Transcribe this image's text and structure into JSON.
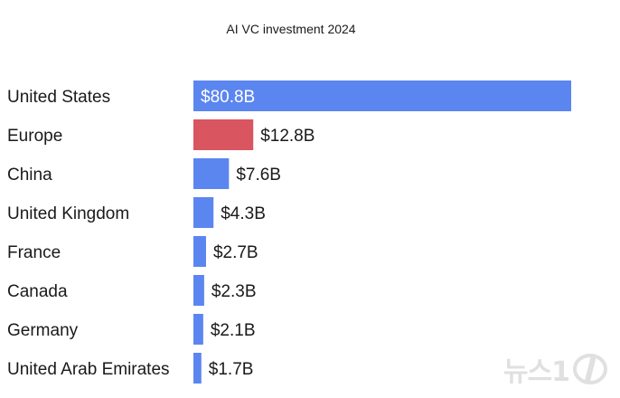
{
  "chart_data": {
    "type": "bar",
    "orientation": "horizontal",
    "title": "AI VC investment 2024",
    "categories": [
      "United States",
      "Europe",
      "China",
      "United Kingdom",
      "France",
      "Canada",
      "Germany",
      "United Arab Emirates"
    ],
    "values": [
      80.8,
      12.8,
      7.6,
      4.3,
      2.7,
      2.3,
      2.1,
      1.7
    ],
    "value_labels": [
      "$80.8B",
      "$12.8B",
      "$7.6B",
      "$4.3B",
      "$2.7B",
      "$2.3B",
      "$2.1B",
      "$1.7B"
    ],
    "unit": "B USD",
    "xlim": [
      0,
      80.8
    ],
    "grid": false,
    "legend": "none",
    "colors": {
      "default": "#5b86f0",
      "highlight": "#d9555f",
      "highlight_category": "Europe"
    }
  },
  "watermark": {
    "text": "뉴스1"
  }
}
